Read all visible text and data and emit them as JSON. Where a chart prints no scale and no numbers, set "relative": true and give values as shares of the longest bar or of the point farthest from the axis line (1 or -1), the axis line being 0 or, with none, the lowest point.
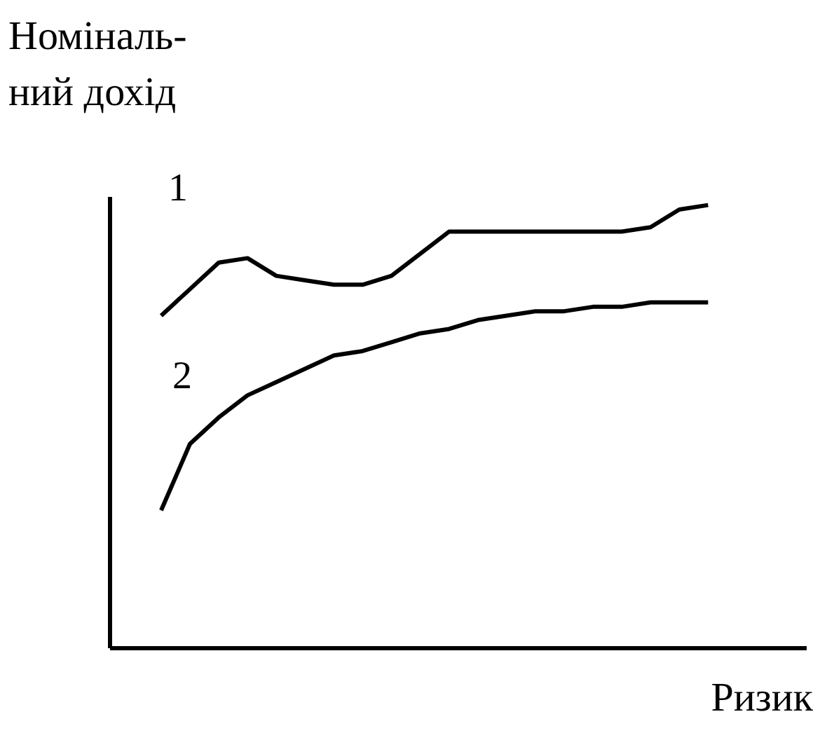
{
  "chart_data": {
    "type": "line",
    "relative": true,
    "ylabel": "Номіналь-\nний дохід",
    "xlabel": "Ризик",
    "categories": [
      null,
      null,
      null,
      null,
      null,
      null,
      null,
      null,
      null,
      null,
      null,
      null,
      null,
      null,
      null,
      null,
      null,
      null,
      null,
      null
    ],
    "series": [
      {
        "name": "1",
        "color": "#000000",
        "values": [
          0.75,
          0.81,
          0.87,
          0.88,
          0.84,
          0.83,
          0.82,
          0.82,
          0.84,
          0.89,
          0.94,
          0.94,
          0.94,
          0.94,
          0.94,
          0.94,
          0.94,
          0.95,
          0.99,
          1.0
        ]
      },
      {
        "name": "2",
        "color": "#000000",
        "values": [
          0.31,
          0.46,
          0.52,
          0.57,
          0.6,
          0.63,
          0.66,
          0.67,
          0.69,
          0.71,
          0.72,
          0.74,
          0.75,
          0.76,
          0.76,
          0.77,
          0.77,
          0.78,
          0.78,
          0.78
        ]
      }
    ],
    "grid": false,
    "marker": "none",
    "line_style": "solid"
  }
}
